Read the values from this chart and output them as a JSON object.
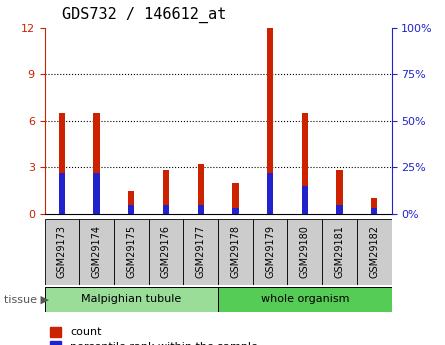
{
  "title": "GDS732 / 146612_at",
  "samples": [
    "GSM29173",
    "GSM29174",
    "GSM29175",
    "GSM29176",
    "GSM29177",
    "GSM29178",
    "GSM29179",
    "GSM29180",
    "GSM29181",
    "GSM29182"
  ],
  "count_values": [
    6.5,
    6.5,
    1.5,
    2.8,
    3.2,
    2.0,
    12.0,
    6.5,
    2.8,
    1.0
  ],
  "percentile_values": [
    22,
    22,
    5,
    5,
    5,
    3,
    22,
    15,
    5,
    3
  ],
  "tissue_groups": [
    {
      "label": "Malpighian tubule",
      "start": 0,
      "end": 4
    },
    {
      "label": "whole organism",
      "start": 5,
      "end": 9
    }
  ],
  "left_ylim": [
    0,
    12
  ],
  "right_ylim": [
    0,
    100
  ],
  "left_yticks": [
    0,
    3,
    6,
    9,
    12
  ],
  "right_yticks": [
    0,
    25,
    50,
    75,
    100
  ],
  "bar_color_red": "#cc2200",
  "bar_color_blue": "#2222cc",
  "tissue_color_malpighian": "#99dd99",
  "tissue_color_whole": "#55cc55",
  "bar_width": 0.18,
  "blue_bar_width": 0.18,
  "background_plot": "#ffffff",
  "title_fontsize": 11,
  "legend_fontsize": 8,
  "xticklabel_bg": "#cccccc",
  "xticklabel_fontsize": 7
}
